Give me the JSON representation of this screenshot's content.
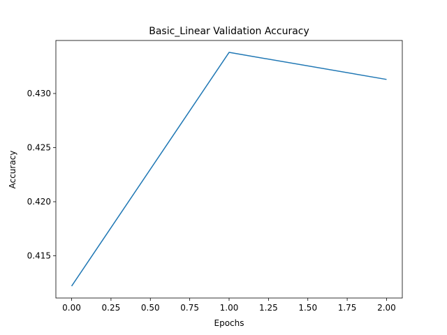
{
  "chart_data": {
    "type": "line",
    "title": "Basic_Linear Validation Accuracy",
    "xlabel": "Epochs",
    "ylabel": "Accuracy",
    "x": [
      0.0,
      1.0,
      2.0
    ],
    "series": [
      {
        "values": [
          0.4122,
          0.4338,
          0.4313
        ],
        "color": "#1f77b4"
      }
    ],
    "xlim": [
      -0.1,
      2.1
    ],
    "ylim": [
      0.4111,
      0.4349
    ],
    "xticks": [
      0.0,
      0.25,
      0.5,
      0.75,
      1.0,
      1.25,
      1.5,
      1.75,
      2.0
    ],
    "xtick_labels": [
      "0.00",
      "0.25",
      "0.50",
      "0.75",
      "1.00",
      "1.25",
      "1.50",
      "1.75",
      "2.00"
    ],
    "yticks": [
      0.415,
      0.42,
      0.425,
      0.43
    ],
    "ytick_labels": [
      "0.415",
      "0.420",
      "0.425",
      "0.430"
    ],
    "grid": false,
    "legend": "none"
  }
}
